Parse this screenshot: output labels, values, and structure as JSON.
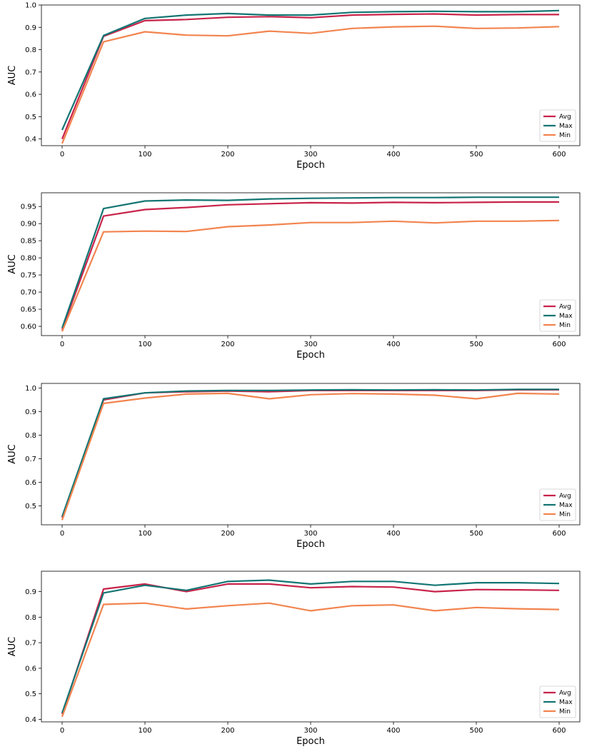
{
  "chart_data": [
    {
      "type": "line",
      "xlabel": "Epoch",
      "ylabel": "AUC",
      "x": [
        0,
        50,
        100,
        150,
        200,
        250,
        300,
        350,
        400,
        450,
        500,
        550,
        600
      ],
      "xlim": [
        -25,
        625
      ],
      "ylim": [
        0.37,
        1.0
      ],
      "xticks": [
        0,
        100,
        200,
        300,
        400,
        500,
        600
      ],
      "xtick_labels": [
        "0",
        "100",
        "200",
        "300",
        "400",
        "500",
        "600"
      ],
      "yticks": [
        0.4,
        0.5,
        0.6,
        0.7,
        0.8,
        0.9,
        1.0
      ],
      "ytick_labels": [
        "0.4",
        "0.5",
        "0.6",
        "0.7",
        "0.8",
        "0.9",
        "1.0"
      ],
      "legend": "lower right",
      "grid": false,
      "series": [
        {
          "name": "Avg",
          "color": "#c8234a",
          "values": [
            0.4,
            0.86,
            0.93,
            0.935,
            0.945,
            0.948,
            0.943,
            0.955,
            0.958,
            0.96,
            0.955,
            0.957,
            0.957
          ]
        },
        {
          "name": "Max",
          "color": "#137573",
          "values": [
            0.44,
            0.863,
            0.94,
            0.955,
            0.962,
            0.955,
            0.955,
            0.967,
            0.97,
            0.972,
            0.97,
            0.97,
            0.975
          ]
        },
        {
          "name": "Min",
          "color": "#f2844f",
          "values": [
            0.38,
            0.835,
            0.88,
            0.865,
            0.862,
            0.883,
            0.873,
            0.895,
            0.902,
            0.905,
            0.895,
            0.897,
            0.903
          ]
        }
      ]
    },
    {
      "type": "line",
      "xlabel": "Epoch",
      "ylabel": "AUC",
      "x": [
        0,
        50,
        100,
        150,
        200,
        250,
        300,
        350,
        400,
        450,
        500,
        550,
        600
      ],
      "xlim": [
        -25,
        625
      ],
      "ylim": [
        0.573,
        0.99
      ],
      "xticks": [
        0,
        100,
        200,
        300,
        400,
        500,
        600
      ],
      "xtick_labels": [
        "0",
        "100",
        "200",
        "300",
        "400",
        "500",
        "600"
      ],
      "yticks": [
        0.6,
        0.65,
        0.7,
        0.75,
        0.8,
        0.85,
        0.9,
        0.95
      ],
      "ytick_labels": [
        "0.60",
        "0.65",
        "0.70",
        "0.75",
        "0.80",
        "0.85",
        "0.90",
        "0.95"
      ],
      "legend": "lower right",
      "grid": false,
      "series": [
        {
          "name": "Avg",
          "color": "#c8234a",
          "values": [
            0.59,
            0.922,
            0.941,
            0.947,
            0.955,
            0.958,
            0.961,
            0.96,
            0.962,
            0.961,
            0.962,
            0.963,
            0.963
          ]
        },
        {
          "name": "Max",
          "color": "#137573",
          "values": [
            0.595,
            0.944,
            0.966,
            0.969,
            0.968,
            0.972,
            0.974,
            0.975,
            0.976,
            0.976,
            0.977,
            0.977,
            0.977
          ]
        },
        {
          "name": "Min",
          "color": "#f2844f",
          "values": [
            0.585,
            0.876,
            0.878,
            0.877,
            0.891,
            0.896,
            0.903,
            0.903,
            0.907,
            0.902,
            0.907,
            0.907,
            0.909
          ]
        }
      ]
    },
    {
      "type": "line",
      "xlabel": "Epoch",
      "ylabel": "AUC",
      "x": [
        0,
        50,
        100,
        150,
        200,
        250,
        300,
        350,
        400,
        450,
        500,
        550,
        600
      ],
      "xlim": [
        -25,
        625
      ],
      "ylim": [
        0.42,
        1.02
      ],
      "xticks": [
        0,
        100,
        200,
        300,
        400,
        500,
        600
      ],
      "xtick_labels": [
        "0",
        "100",
        "200",
        "300",
        "400",
        "500",
        "600"
      ],
      "yticks": [
        0.5,
        0.6,
        0.7,
        0.8,
        0.9,
        1.0
      ],
      "ytick_labels": [
        "0.5",
        "0.6",
        "0.7",
        "0.8",
        "0.9",
        "1.0"
      ],
      "legend": "lower right",
      "grid": false,
      "series": [
        {
          "name": "Avg",
          "color": "#c8234a",
          "values": [
            0.45,
            0.95,
            0.98,
            0.985,
            0.988,
            0.985,
            0.99,
            0.99,
            0.99,
            0.99,
            0.99,
            0.993,
            0.993
          ]
        },
        {
          "name": "Max",
          "color": "#137573",
          "values": [
            0.455,
            0.955,
            0.98,
            0.988,
            0.99,
            0.99,
            0.992,
            0.993,
            0.992,
            0.993,
            0.992,
            0.995,
            0.995
          ]
        },
        {
          "name": "Min",
          "color": "#f2844f",
          "values": [
            0.44,
            0.935,
            0.958,
            0.975,
            0.978,
            0.955,
            0.972,
            0.977,
            0.975,
            0.97,
            0.955,
            0.978,
            0.975
          ]
        }
      ]
    },
    {
      "type": "line",
      "xlabel": "Epoch",
      "ylabel": "AUC",
      "x": [
        0,
        50,
        100,
        150,
        200,
        250,
        300,
        350,
        400,
        450,
        500,
        550,
        600
      ],
      "xlim": [
        -25,
        625
      ],
      "ylim": [
        0.39,
        0.98
      ],
      "xticks": [
        0,
        100,
        200,
        300,
        400,
        500,
        600
      ],
      "xtick_labels": [
        "0",
        "100",
        "200",
        "300",
        "400",
        "500",
        "600"
      ],
      "yticks": [
        0.4,
        0.5,
        0.6,
        0.7,
        0.8,
        0.9
      ],
      "ytick_labels": [
        "0.4",
        "0.5",
        "0.6",
        "0.7",
        "0.8",
        "0.9"
      ],
      "legend": "lower right",
      "grid": false,
      "series": [
        {
          "name": "Avg",
          "color": "#c8234a",
          "values": [
            0.42,
            0.91,
            0.93,
            0.9,
            0.93,
            0.93,
            0.915,
            0.92,
            0.918,
            0.9,
            0.908,
            0.907,
            0.905
          ]
        },
        {
          "name": "Max",
          "color": "#137573",
          "values": [
            0.425,
            0.895,
            0.925,
            0.905,
            0.94,
            0.945,
            0.93,
            0.94,
            0.94,
            0.925,
            0.935,
            0.935,
            0.932
          ]
        },
        {
          "name": "Min",
          "color": "#f2844f",
          "values": [
            0.41,
            0.85,
            0.855,
            0.832,
            0.845,
            0.855,
            0.825,
            0.845,
            0.848,
            0.825,
            0.838,
            0.833,
            0.83
          ]
        }
      ]
    }
  ]
}
